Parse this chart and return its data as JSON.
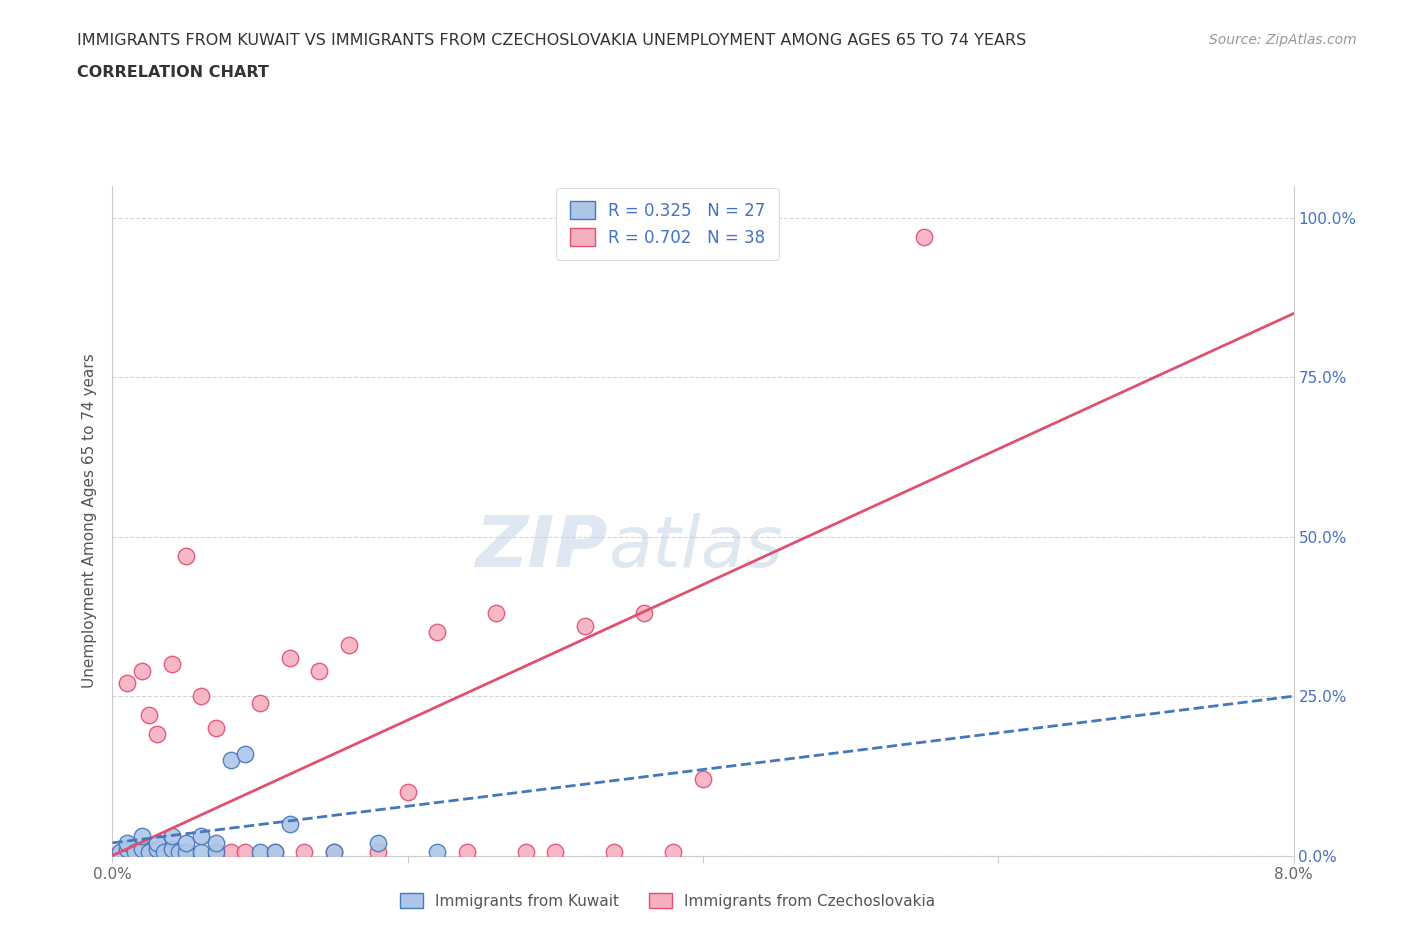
{
  "title_line1": "IMMIGRANTS FROM KUWAIT VS IMMIGRANTS FROM CZECHOSLOVAKIA UNEMPLOYMENT AMONG AGES 65 TO 74 YEARS",
  "title_line2": "CORRELATION CHART",
  "source_text": "Source: ZipAtlas.com",
  "ylabel": "Unemployment Among Ages 65 to 74 years",
  "xmin": 0.0,
  "xmax": 0.08,
  "ymin": 0.0,
  "ymax": 1.05,
  "kuwait_R": 0.325,
  "kuwait_N": 27,
  "czech_R": 0.702,
  "czech_N": 38,
  "kuwait_color": "#adc6e8",
  "czech_color": "#f5b0c0",
  "kuwait_line_color": "#4477bb",
  "czech_line_color": "#e05070",
  "legend_label_kuwait": "Immigrants from Kuwait",
  "legend_label_czech": "Immigrants from Czechoslovakia",
  "kuwait_x": [
    0.0005,
    0.001,
    0.001,
    0.0015,
    0.002,
    0.002,
    0.0025,
    0.003,
    0.003,
    0.0035,
    0.004,
    0.004,
    0.0045,
    0.005,
    0.005,
    0.006,
    0.006,
    0.007,
    0.007,
    0.008,
    0.009,
    0.01,
    0.011,
    0.012,
    0.015,
    0.018,
    0.022
  ],
  "kuwait_y": [
    0.005,
    0.01,
    0.02,
    0.005,
    0.01,
    0.03,
    0.005,
    0.01,
    0.02,
    0.005,
    0.01,
    0.03,
    0.005,
    0.005,
    0.02,
    0.005,
    0.03,
    0.005,
    0.02,
    0.15,
    0.16,
    0.005,
    0.005,
    0.05,
    0.005,
    0.02,
    0.005
  ],
  "czech_x": [
    0.0005,
    0.001,
    0.001,
    0.0015,
    0.002,
    0.002,
    0.0025,
    0.003,
    0.003,
    0.004,
    0.004,
    0.005,
    0.005,
    0.006,
    0.007,
    0.007,
    0.008,
    0.009,
    0.01,
    0.011,
    0.012,
    0.013,
    0.014,
    0.015,
    0.016,
    0.018,
    0.02,
    0.022,
    0.024,
    0.026,
    0.028,
    0.03,
    0.032,
    0.034,
    0.036,
    0.038,
    0.04,
    0.055
  ],
  "czech_y": [
    0.005,
    0.01,
    0.27,
    0.005,
    0.005,
    0.29,
    0.22,
    0.005,
    0.19,
    0.005,
    0.3,
    0.005,
    0.47,
    0.25,
    0.005,
    0.2,
    0.005,
    0.005,
    0.24,
    0.005,
    0.31,
    0.005,
    0.29,
    0.005,
    0.33,
    0.005,
    0.1,
    0.35,
    0.005,
    0.38,
    0.005,
    0.005,
    0.36,
    0.005,
    0.38,
    0.005,
    0.12,
    0.97
  ],
  "czech_trend_x0": 0.0,
  "czech_trend_y0": 0.0,
  "czech_trend_x1": 0.08,
  "czech_trend_y1": 0.85,
  "kuwait_trend_x0": 0.0,
  "kuwait_trend_y0": 0.02,
  "kuwait_trend_x1": 0.08,
  "kuwait_trend_y1": 0.25
}
